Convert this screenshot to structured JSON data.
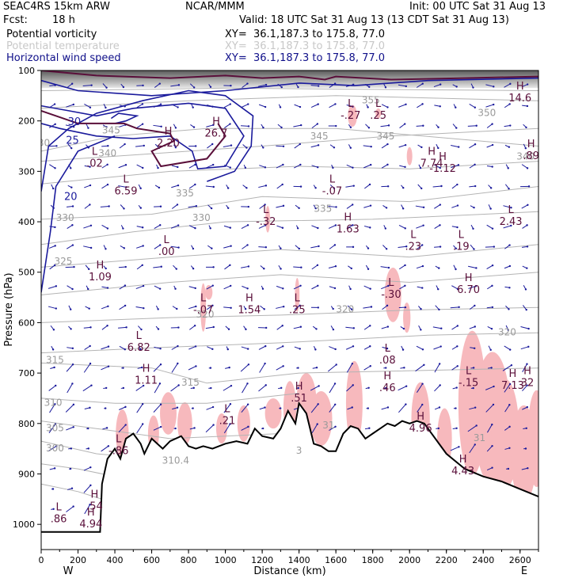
{
  "header": {
    "model": "SEAC4RS 15km ARW",
    "org": "NCAR/MMM",
    "init": "Init: 00 UTC Sat 31 Aug 13",
    "fcst_label": "Fcst:",
    "fcst_value": "18 h",
    "valid": "Valid: 18 UTC Sat 31 Aug 13 (13 CDT Sat 31 Aug 13)",
    "fields": [
      {
        "name": "Potential vorticity",
        "xy": "XY=  36.1,187.3 to 175.8, 77.0",
        "color": "#000000"
      },
      {
        "name": "Potential temperature",
        "xy": "XY=  36.1,187.3 to 175.8, 77.0",
        "color": "#c8c8c8"
      },
      {
        "name": "Horizontal wind speed",
        "xy": "XY=  36.1,187.3 to 175.8, 77.0",
        "color": "#10108a"
      }
    ]
  },
  "colors": {
    "pv_fill": "#f7b9bd",
    "pv_contour": "#5a0f3a",
    "theta": "#b4b4b4",
    "wind": "#1a1a9c",
    "terrain": "#000000"
  },
  "chart_data": {
    "type": "cross-section",
    "xlabel": "Distance (km)",
    "ylabel": "Pressure (hPa)",
    "xlim": [
      0,
      2700
    ],
    "ylim": [
      1050,
      100
    ],
    "x_ticks": [
      0,
      200,
      400,
      600,
      800,
      1000,
      1200,
      1400,
      1600,
      1800,
      2000,
      2200,
      2400,
      2600
    ],
    "y_ticks": [
      100,
      200,
      300,
      400,
      500,
      600,
      700,
      800,
      900,
      1000
    ],
    "x_end_labels": [
      "W",
      "E"
    ],
    "terrain": [
      [
        0,
        1015
      ],
      [
        320,
        1015
      ],
      [
        330,
        920
      ],
      [
        360,
        870
      ],
      [
        400,
        850
      ],
      [
        430,
        870
      ],
      [
        460,
        830
      ],
      [
        500,
        820
      ],
      [
        540,
        840
      ],
      [
        560,
        860
      ],
      [
        600,
        830
      ],
      [
        660,
        850
      ],
      [
        700,
        835
      ],
      [
        760,
        825
      ],
      [
        800,
        845
      ],
      [
        840,
        850
      ],
      [
        880,
        845
      ],
      [
        930,
        850
      ],
      [
        1000,
        840
      ],
      [
        1060,
        835
      ],
      [
        1120,
        840
      ],
      [
        1160,
        810
      ],
      [
        1200,
        825
      ],
      [
        1260,
        830
      ],
      [
        1300,
        810
      ],
      [
        1340,
        775
      ],
      [
        1380,
        800
      ],
      [
        1400,
        760
      ],
      [
        1440,
        780
      ],
      [
        1480,
        840
      ],
      [
        1520,
        845
      ],
      [
        1560,
        855
      ],
      [
        1600,
        855
      ],
      [
        1640,
        820
      ],
      [
        1680,
        805
      ],
      [
        1720,
        810
      ],
      [
        1760,
        830
      ],
      [
        1800,
        820
      ],
      [
        1840,
        810
      ],
      [
        1880,
        800
      ],
      [
        1920,
        805
      ],
      [
        1960,
        795
      ],
      [
        2000,
        800
      ],
      [
        2040,
        795
      ],
      [
        2080,
        800
      ],
      [
        2200,
        860
      ],
      [
        2300,
        890
      ],
      [
        2400,
        905
      ],
      [
        2500,
        915
      ],
      [
        2600,
        930
      ],
      [
        2700,
        945
      ]
    ],
    "theta_labels": [
      {
        "x": 15,
        "p": 250,
        "text": "30"
      },
      {
        "x": 380,
        "p": 225,
        "text": "345"
      },
      {
        "x": 360,
        "p": 270,
        "text": "340"
      },
      {
        "x": 130,
        "p": 398,
        "text": "330"
      },
      {
        "x": 870,
        "p": 398,
        "text": "330"
      },
      {
        "x": 780,
        "p": 350,
        "text": "335"
      },
      {
        "x": 1510,
        "p": 237,
        "text": "345"
      },
      {
        "x": 1530,
        "p": 380,
        "text": "335"
      },
      {
        "x": 1870,
        "p": 237,
        "text": "345"
      },
      {
        "x": 1790,
        "p": 165,
        "text": "355"
      },
      {
        "x": 2420,
        "p": 190,
        "text": "350"
      },
      {
        "x": 2630,
        "p": 277,
        "text": "340"
      },
      {
        "x": 120,
        "p": 485,
        "text": "325"
      },
      {
        "x": 890,
        "p": 590,
        "text": "320"
      },
      {
        "x": 1650,
        "p": 580,
        "text": "320"
      },
      {
        "x": 2530,
        "p": 625,
        "text": "320"
      },
      {
        "x": 75,
        "p": 680,
        "text": "315"
      },
      {
        "x": 810,
        "p": 725,
        "text": "315"
      },
      {
        "x": 65,
        "p": 765,
        "text": "310"
      },
      {
        "x": 75,
        "p": 815,
        "text": "305"
      },
      {
        "x": 75,
        "p": 855,
        "text": "300"
      },
      {
        "x": 730,
        "p": 880,
        "text": "310.4"
      },
      {
        "x": 1560,
        "p": 810,
        "text": "31"
      },
      {
        "x": 1400,
        "p": 860,
        "text": "3"
      },
      {
        "x": 2380,
        "p": 835,
        "text": "31"
      }
    ],
    "wind_labels": [
      {
        "x": 180,
        "p": 208,
        "text": "30"
      },
      {
        "x": 170,
        "p": 245,
        "text": "25"
      },
      {
        "x": 160,
        "p": 357,
        "text": "20"
      }
    ],
    "extrema": [
      {
        "x": 290,
        "p": 280,
        "letter": "L",
        "value": ".02"
      },
      {
        "x": 460,
        "p": 335,
        "letter": "L",
        "value": "6.59"
      },
      {
        "x": 690,
        "p": 240,
        "letter": "H",
        "value": "2.20"
      },
      {
        "x": 950,
        "p": 220,
        "letter": "H",
        "value": "26.7"
      },
      {
        "x": 1220,
        "p": 395,
        "letter": "L",
        "value": "-.32"
      },
      {
        "x": 1580,
        "p": 335,
        "letter": "L",
        "value": "-.07"
      },
      {
        "x": 1665,
        "p": 410,
        "letter": "H",
        "value": "1.63"
      },
      {
        "x": 680,
        "p": 455,
        "letter": "L",
        "value": ".00"
      },
      {
        "x": 1680,
        "p": 185,
        "letter": "L",
        "value": "-.27"
      },
      {
        "x": 1830,
        "p": 185,
        "letter": "L",
        "value": ".25"
      },
      {
        "x": 2600,
        "p": 150,
        "letter": "H",
        "value": "14.6"
      },
      {
        "x": 2660,
        "p": 265,
        "letter": "H",
        "value": ".89"
      },
      {
        "x": 2120,
        "p": 280,
        "letter": "H",
        "value": "7.74"
      },
      {
        "x": 2180,
        "p": 290,
        "letter": "H",
        "value": "-1.12"
      },
      {
        "x": 2550,
        "p": 395,
        "letter": "L",
        "value": "2.43"
      },
      {
        "x": 2020,
        "p": 445,
        "letter": "L",
        "value": ".23"
      },
      {
        "x": 2280,
        "p": 445,
        "letter": "L",
        "value": ".19"
      },
      {
        "x": 2320,
        "p": 530,
        "letter": "H",
        "value": "6.70"
      },
      {
        "x": 320,
        "p": 505,
        "letter": "H",
        "value": "1.09"
      },
      {
        "x": 880,
        "p": 570,
        "letter": "L",
        "value": "-.07"
      },
      {
        "x": 1130,
        "p": 570,
        "letter": "H",
        "value": "1.54"
      },
      {
        "x": 1390,
        "p": 570,
        "letter": "L",
        "value": ".25"
      },
      {
        "x": 1900,
        "p": 540,
        "letter": "L",
        "value": "-.30"
      },
      {
        "x": 530,
        "p": 645,
        "letter": "L",
        "value": "6.82"
      },
      {
        "x": 570,
        "p": 710,
        "letter": "H",
        "value": "1.11"
      },
      {
        "x": 1880,
        "p": 670,
        "letter": "L",
        "value": ".08"
      },
      {
        "x": 1880,
        "p": 725,
        "letter": "H",
        "value": ".46"
      },
      {
        "x": 1400,
        "p": 745,
        "letter": "H",
        "value": ".51"
      },
      {
        "x": 1010,
        "p": 790,
        "letter": "L",
        "value": ".21"
      },
      {
        "x": 2060,
        "p": 805,
        "letter": "H",
        "value": "4.96"
      },
      {
        "x": 2320,
        "p": 715,
        "letter": "L",
        "value": "-.15"
      },
      {
        "x": 2560,
        "p": 720,
        "letter": "H",
        "value": "7.13"
      },
      {
        "x": 2640,
        "p": 715,
        "letter": "H",
        "value": "32"
      },
      {
        "x": 420,
        "p": 850,
        "letter": "L",
        "value": "-.86"
      },
      {
        "x": 2290,
        "p": 890,
        "letter": "H",
        "value": "4.43"
      },
      {
        "x": 95,
        "p": 985,
        "letter": "L",
        "value": ".86"
      },
      {
        "x": 270,
        "p": 995,
        "letter": "H",
        "value": "4.94"
      },
      {
        "x": 290,
        "p": 960,
        "letter": "H",
        "value": ".54"
      }
    ]
  }
}
